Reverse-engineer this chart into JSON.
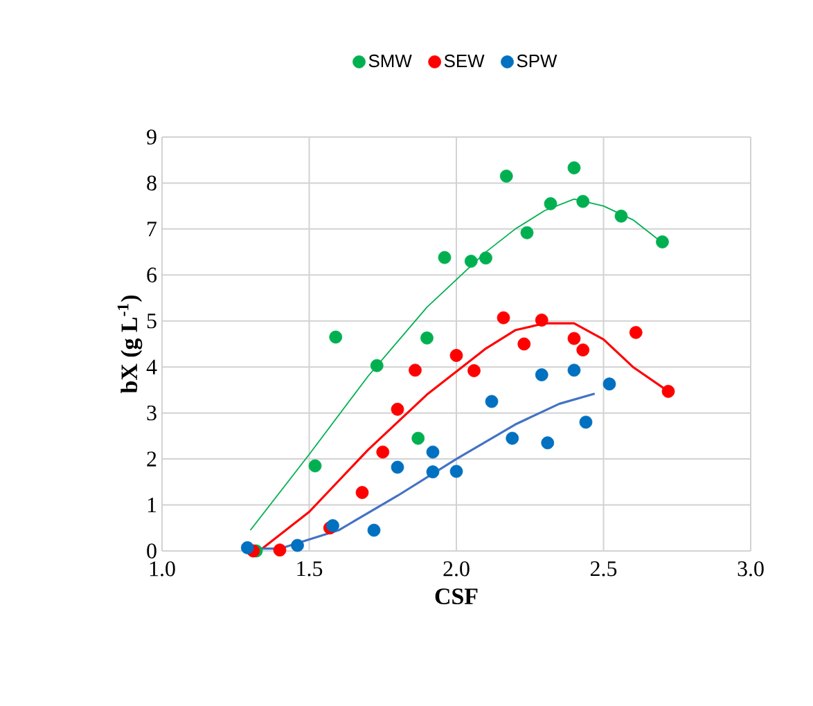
{
  "chart_data": {
    "type": "scatter",
    "xlabel": "CSF",
    "ylabel": "bX (g L$^{-1}$)",
    "xlim": [
      1.0,
      3.0
    ],
    "ylim": [
      0,
      9
    ],
    "xticks": [
      {
        "value": 1.0,
        "label": "1.0"
      },
      {
        "value": 1.5,
        "label": "1.5"
      },
      {
        "value": 2.0,
        "label": "2.0"
      },
      {
        "value": 2.5,
        "label": "2.5"
      },
      {
        "value": 3.0,
        "label": "3.0"
      }
    ],
    "yticks": [
      0,
      1,
      2,
      3,
      4,
      5,
      6,
      7,
      8,
      9
    ],
    "grid": true,
    "legend": "top",
    "series": [
      {
        "name": "SMW",
        "color": "#00b050",
        "marker": "circle",
        "x": [
          1.32,
          1.52,
          1.59,
          1.73,
          1.87,
          1.9,
          1.96,
          2.05,
          2.1,
          2.17,
          2.24,
          2.32,
          2.4,
          2.43,
          2.56,
          2.7
        ],
        "values": [
          0.0,
          1.85,
          4.65,
          4.03,
          2.45,
          4.63,
          6.38,
          6.3,
          6.37,
          8.15,
          6.92,
          7.55,
          8.33,
          7.6,
          7.28,
          6.72
        ]
      },
      {
        "name": "SEW",
        "color": "#ff0000",
        "marker": "circle",
        "x": [
          1.31,
          1.4,
          1.57,
          1.68,
          1.75,
          1.8,
          1.86,
          2.0,
          2.06,
          2.16,
          2.23,
          2.29,
          2.4,
          2.43,
          2.61,
          2.72
        ],
        "values": [
          0.0,
          0.02,
          0.5,
          1.27,
          2.15,
          3.08,
          3.93,
          4.25,
          3.92,
          5.07,
          4.5,
          5.02,
          4.62,
          4.37,
          4.75,
          3.47
        ]
      },
      {
        "name": "SPW",
        "color": "#0070c0",
        "marker": "circle",
        "x": [
          1.29,
          1.46,
          1.58,
          1.72,
          1.8,
          1.92,
          1.92,
          2.0,
          2.12,
          2.19,
          2.29,
          2.31,
          2.4,
          2.44,
          2.52
        ],
        "values": [
          0.07,
          0.12,
          0.55,
          0.45,
          1.82,
          2.15,
          1.72,
          1.73,
          3.25,
          2.45,
          3.83,
          2.35,
          3.93,
          2.8,
          3.63
        ]
      },
      {
        "type": "line",
        "marker": "none",
        "color": "#00b050",
        "x": [
          1.3,
          1.5,
          1.7,
          1.9,
          2.1,
          2.2,
          2.3,
          2.4,
          2.5,
          2.6,
          2.7
        ],
        "values": [
          0.45,
          2.1,
          3.8,
          5.3,
          6.5,
          7.0,
          7.4,
          7.65,
          7.5,
          7.2,
          6.7
        ]
      },
      {
        "type": "line",
        "marker": "none",
        "color": "#ff0000",
        "x": [
          1.33,
          1.5,
          1.7,
          1.9,
          2.1,
          2.2,
          2.3,
          2.4,
          2.5,
          2.6,
          2.72
        ],
        "values": [
          0.0,
          0.85,
          2.2,
          3.4,
          4.4,
          4.8,
          4.95,
          4.95,
          4.6,
          4.0,
          3.47
        ]
      },
      {
        "type": "line",
        "marker": "none",
        "color": "#4472c4",
        "x": [
          1.28,
          1.4,
          1.6,
          1.8,
          2.0,
          2.2,
          2.35,
          2.47
        ],
        "values": [
          0.05,
          0.05,
          0.45,
          1.2,
          2.0,
          2.75,
          3.2,
          3.42
        ]
      }
    ]
  }
}
